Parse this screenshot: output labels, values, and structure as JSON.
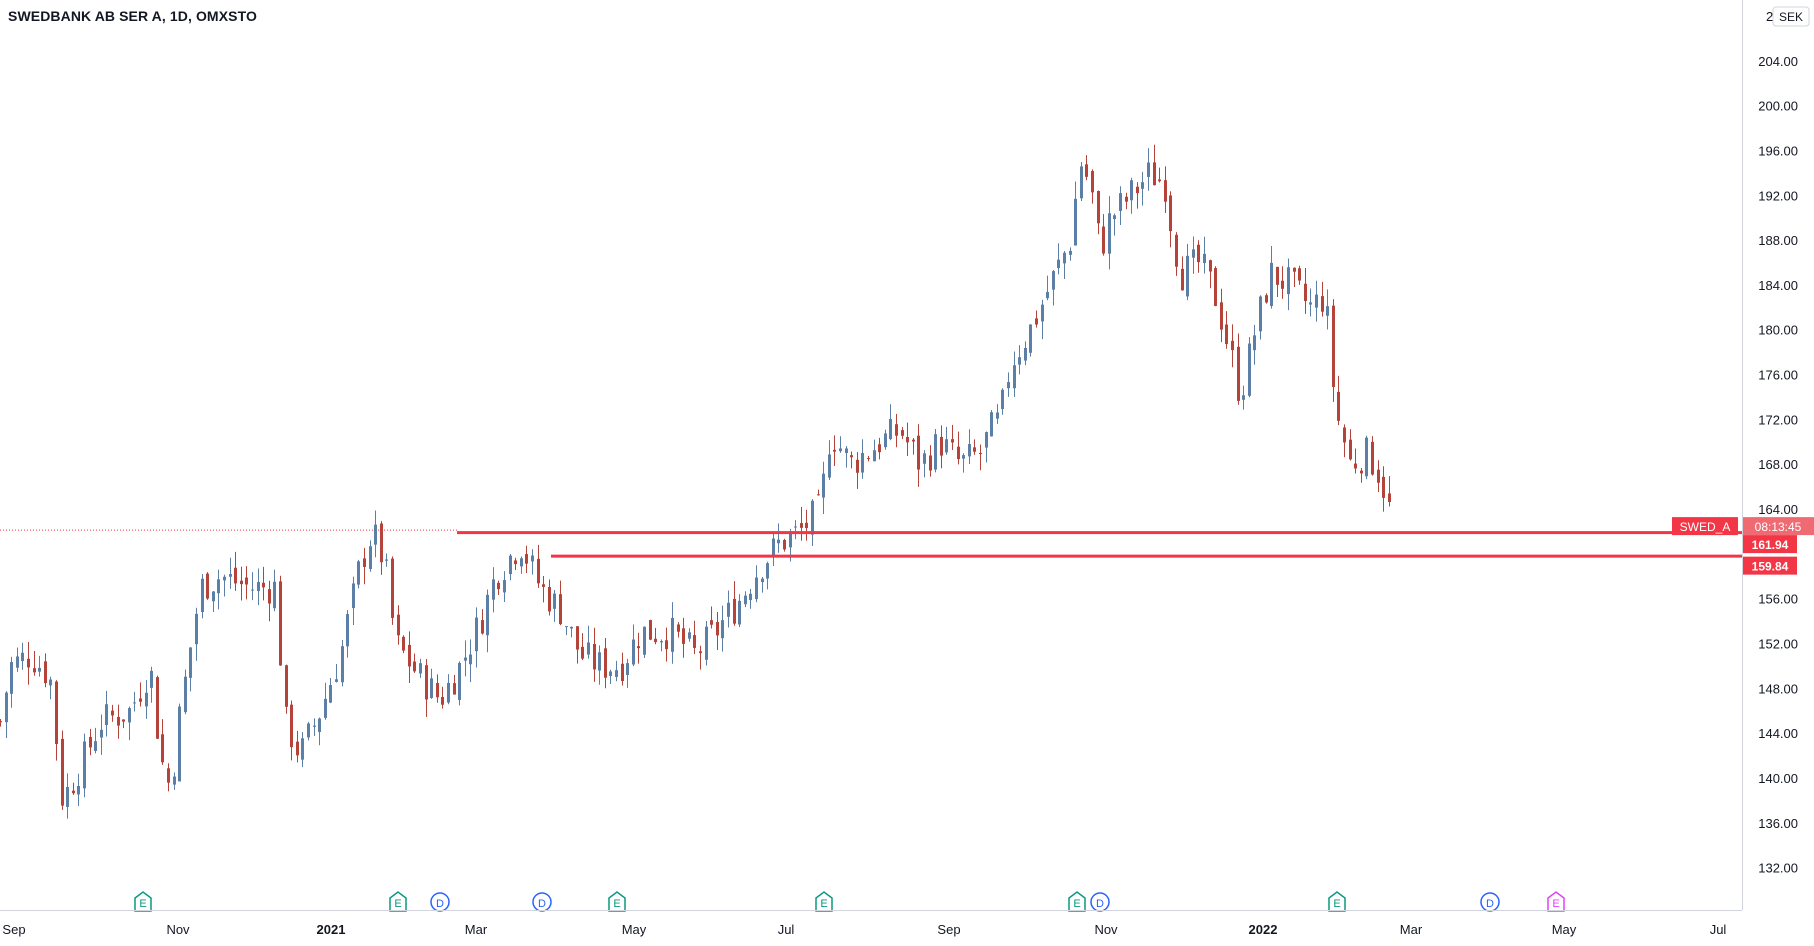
{
  "header": {
    "title": "SWEDBANK AB SER A, 1D, OMXSTO"
  },
  "currency_badge": "SEK",
  "colors": {
    "up": "#5b7fa6",
    "down": "#b5433a",
    "level_line": "#f23645",
    "axis_text": "#131722",
    "grid": "#f0f3fa",
    "earnings": "#089981",
    "dividend": "#2962ff",
    "future_earnings": "#e040fb"
  },
  "chart_data": {
    "type": "candlestick",
    "title": "SWEDBANK AB SER A, 1D, OMXSTO",
    "currency": "SEK",
    "ylim": [
      130,
      208
    ],
    "y_ticks": [
      "204.00",
      "200.00",
      "196.00",
      "192.00",
      "188.00",
      "184.00",
      "180.00",
      "176.00",
      "172.00",
      "168.00",
      "164.00",
      "156.00",
      "152.00",
      "148.00",
      "144.00",
      "140.00",
      "136.00",
      "132.00"
    ],
    "x_labels": [
      {
        "label": "Sep",
        "bold": false
      },
      {
        "label": "Nov",
        "bold": false
      },
      {
        "label": "2021",
        "bold": true
      },
      {
        "label": "Mar",
        "bold": false
      },
      {
        "label": "May",
        "bold": false
      },
      {
        "label": "Jul",
        "bold": false
      },
      {
        "label": "Sep",
        "bold": false
      },
      {
        "label": "Nov",
        "bold": false
      },
      {
        "label": "2022",
        "bold": true
      },
      {
        "label": "Mar",
        "bold": false
      },
      {
        "label": "May",
        "bold": false
      },
      {
        "label": "Jul",
        "bold": false
      }
    ],
    "price_path": [
      [
        0,
        145
      ],
      [
        10,
        150
      ],
      [
        30,
        151
      ],
      [
        50,
        149
      ],
      [
        62,
        138
      ],
      [
        80,
        141
      ],
      [
        100,
        145
      ],
      [
        130,
        146
      ],
      [
        150,
        150
      ],
      [
        160,
        142
      ],
      [
        170,
        139
      ],
      [
        180,
        146
      ],
      [
        200,
        157
      ],
      [
        220,
        158
      ],
      [
        250,
        157
      ],
      [
        275,
        157
      ],
      [
        285,
        145
      ],
      [
        300,
        142
      ],
      [
        320,
        146
      ],
      [
        340,
        151
      ],
      [
        360,
        159
      ],
      [
        372,
        162
      ],
      [
        385,
        159
      ],
      [
        395,
        152
      ],
      [
        420,
        149
      ],
      [
        440,
        147
      ],
      [
        460,
        150
      ],
      [
        480,
        154
      ],
      [
        495,
        158
      ],
      [
        520,
        161
      ],
      [
        540,
        157
      ],
      [
        560,
        155
      ],
      [
        580,
        151
      ],
      [
        600,
        150
      ],
      [
        620,
        150
      ],
      [
        640,
        153
      ],
      [
        670,
        153
      ],
      [
        695,
        151
      ],
      [
        715,
        153
      ],
      [
        740,
        156
      ],
      [
        760,
        159
      ],
      [
        780,
        161
      ],
      [
        800,
        162
      ],
      [
        820,
        164
      ],
      [
        830,
        171
      ],
      [
        850,
        168
      ],
      [
        880,
        170
      ],
      [
        900,
        171
      ],
      [
        920,
        168
      ],
      [
        940,
        170
      ],
      [
        960,
        168
      ],
      [
        980,
        169
      ],
      [
        990,
        171
      ],
      [
        1000,
        172
      ],
      [
        1010,
        177
      ],
      [
        1030,
        180
      ],
      [
        1050,
        184
      ],
      [
        1070,
        188
      ],
      [
        1080,
        195
      ],
      [
        1090,
        193
      ],
      [
        1100,
        187
      ],
      [
        1110,
        190
      ],
      [
        1130,
        192
      ],
      [
        1150,
        194
      ],
      [
        1165,
        193
      ],
      [
        1170,
        190
      ],
      [
        1180,
        185
      ],
      [
        1200,
        186
      ],
      [
        1215,
        183
      ],
      [
        1230,
        178
      ],
      [
        1240,
        174
      ],
      [
        1255,
        180
      ],
      [
        1270,
        185
      ],
      [
        1290,
        184
      ],
      [
        1310,
        182
      ],
      [
        1325,
        183
      ],
      [
        1335,
        173
      ],
      [
        1350,
        168
      ],
      [
        1365,
        169
      ],
      [
        1375,
        168
      ],
      [
        1387,
        165
      ],
      [
        1394,
        161
      ]
    ],
    "lines": [
      {
        "name": "SWED_A",
        "price": 161.94,
        "time_label": "08:13:45"
      },
      {
        "name": "",
        "price": 159.84
      }
    ],
    "event_markers": [
      {
        "label": "E",
        "x_day": 143
      },
      {
        "label": "E",
        "x_day": 398
      },
      {
        "label": "D",
        "x_day": 440
      },
      {
        "label": "D",
        "x_day": 542
      },
      {
        "label": "E",
        "x_day": 617
      },
      {
        "label": "E",
        "x_day": 824
      },
      {
        "label": "E",
        "x_day": 1077
      },
      {
        "label": "D",
        "x_day": 1100
      },
      {
        "label": "E",
        "x_day": 1337
      },
      {
        "label": "D",
        "x_day": 1490
      },
      {
        "label": "E",
        "x_day": 1556,
        "future": true
      }
    ],
    "grid": false,
    "legend": "none"
  }
}
